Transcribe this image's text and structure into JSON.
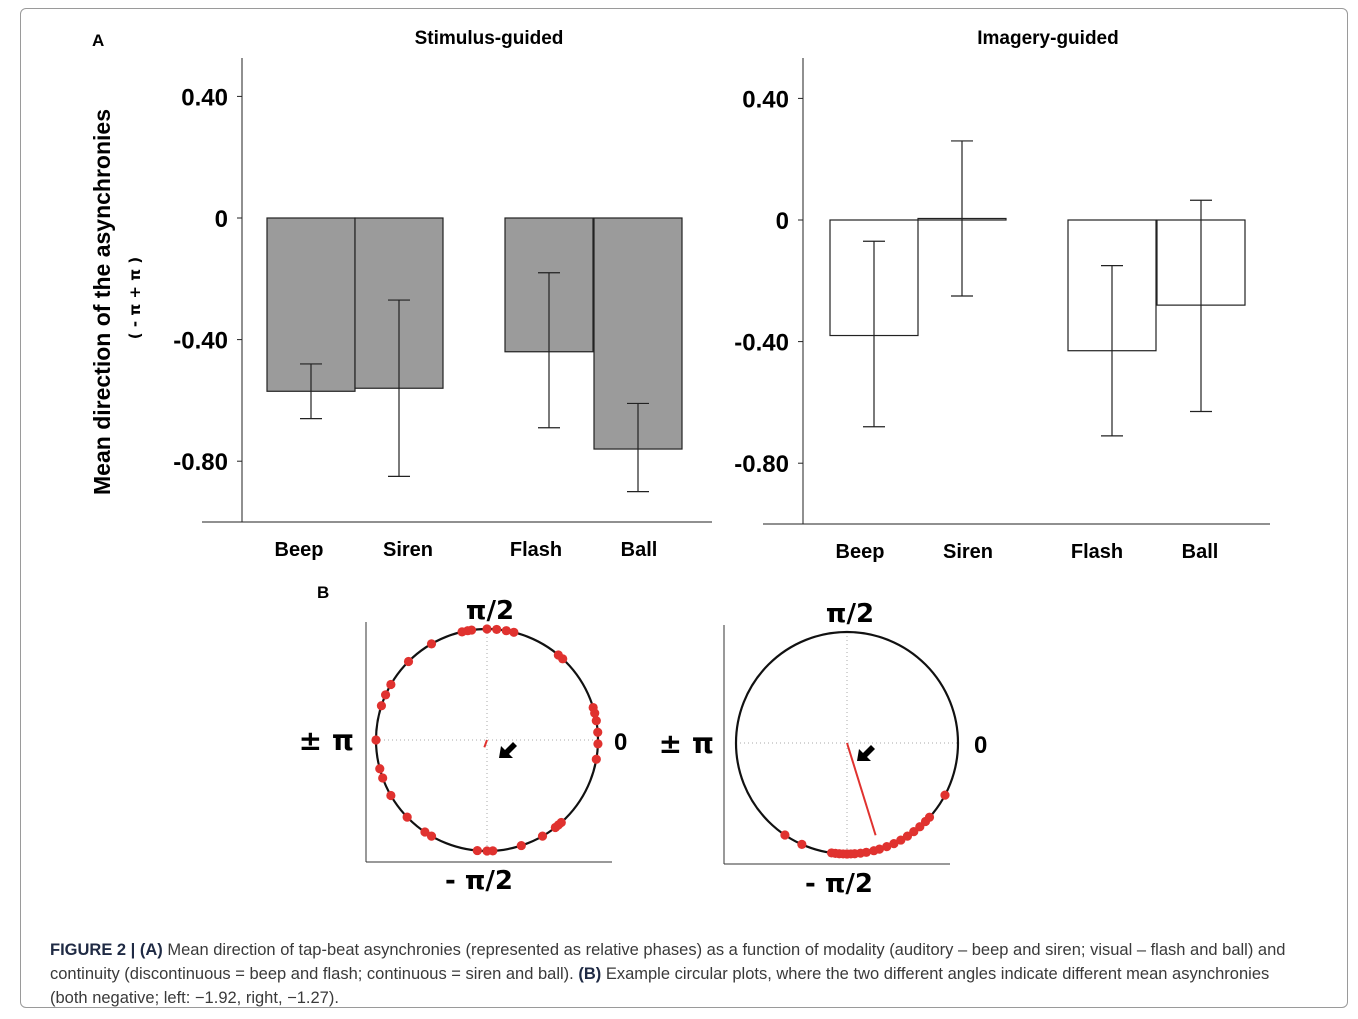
{
  "figure": {
    "panel_a_label": "A",
    "panel_b_label": "B",
    "ylabel": "Mean direction of the asynchronies",
    "ylabel_sub": "( - π + π )"
  },
  "chart_data": [
    {
      "type": "bar",
      "title": "Stimulus-guided",
      "categories": [
        "Beep",
        "Siren",
        "Flash",
        "Ball"
      ],
      "values": [
        -0.57,
        -0.56,
        -0.44,
        -0.76
      ],
      "error_low": [
        -0.66,
        -0.85,
        -0.69,
        -0.9
      ],
      "error_high": [
        -0.48,
        -0.27,
        -0.18,
        -0.61
      ],
      "yticks": [
        0.4,
        0,
        -0.4,
        -0.8
      ],
      "ytick_labels": [
        "0.40",
        "0",
        "-0.40",
        "-0.80"
      ],
      "ylim": [
        -1.0,
        0.55
      ],
      "fill": "#9b9b9b"
    },
    {
      "type": "bar",
      "title": "Imagery-guided",
      "categories": [
        "Beep",
        "Siren",
        "Flash",
        "Ball"
      ],
      "values": [
        -0.38,
        0.005,
        -0.43,
        -0.28
      ],
      "error_low": [
        -0.68,
        -0.25,
        -0.71,
        -0.63
      ],
      "error_high": [
        -0.07,
        0.26,
        -0.15,
        0.065
      ],
      "yticks": [
        0.4,
        0,
        -0.4,
        -0.8
      ],
      "ytick_labels": [
        "0.40",
        "0",
        "-0.40",
        "-0.80"
      ],
      "ylim": [
        -1.0,
        0.55
      ],
      "fill": "#ffffff"
    },
    {
      "type": "scatter",
      "subtype": "circular",
      "top_label": "π/2",
      "bottom_label": "- π/2",
      "left_label": "± π",
      "right_label": "0",
      "points_deg": [
        90,
        85,
        80,
        76,
        98,
        100,
        103,
        120,
        135,
        150,
        156,
        162,
        180,
        195,
        200,
        210,
        224,
        236,
        240,
        265,
        270,
        273,
        288,
        300,
        308,
        310,
        312,
        350,
        358,
        4,
        10,
        14,
        17,
        47,
        50
      ],
      "mean_angle_rad": -1.92,
      "mean_vector_length": 0.07,
      "point_color": "#e0322f",
      "vector_color": "#e0322f"
    },
    {
      "type": "scatter",
      "subtype": "circular",
      "top_label": "π/2",
      "bottom_label": "- π/2",
      "left_label": "± π",
      "right_label": "0",
      "points_deg": [
        236,
        246,
        262,
        264,
        266,
        268,
        270,
        272,
        274,
        277,
        280,
        284,
        287,
        291,
        295,
        299,
        303,
        307,
        311,
        315,
        318,
        332
      ],
      "mean_angle_rad": -1.27,
      "mean_vector_length": 0.87,
      "point_color": "#e0322f",
      "vector_color": "#e0322f"
    }
  ],
  "caption": {
    "figure_label": "FIGURE 2 | ",
    "a_label": "(A)",
    "a_text": " Mean direction of tap-beat asynchronies (represented as relative phases) as a function of modality (auditory – beep and siren; visual – flash and ball) and continuity (discontinuous = beep and flash; continuous = siren and ball). ",
    "b_label": "(B)",
    "b_text": " Example circular plots, where the two different angles indicate different mean asynchronies (both negative; left: −1.92, right, −1.27)."
  }
}
